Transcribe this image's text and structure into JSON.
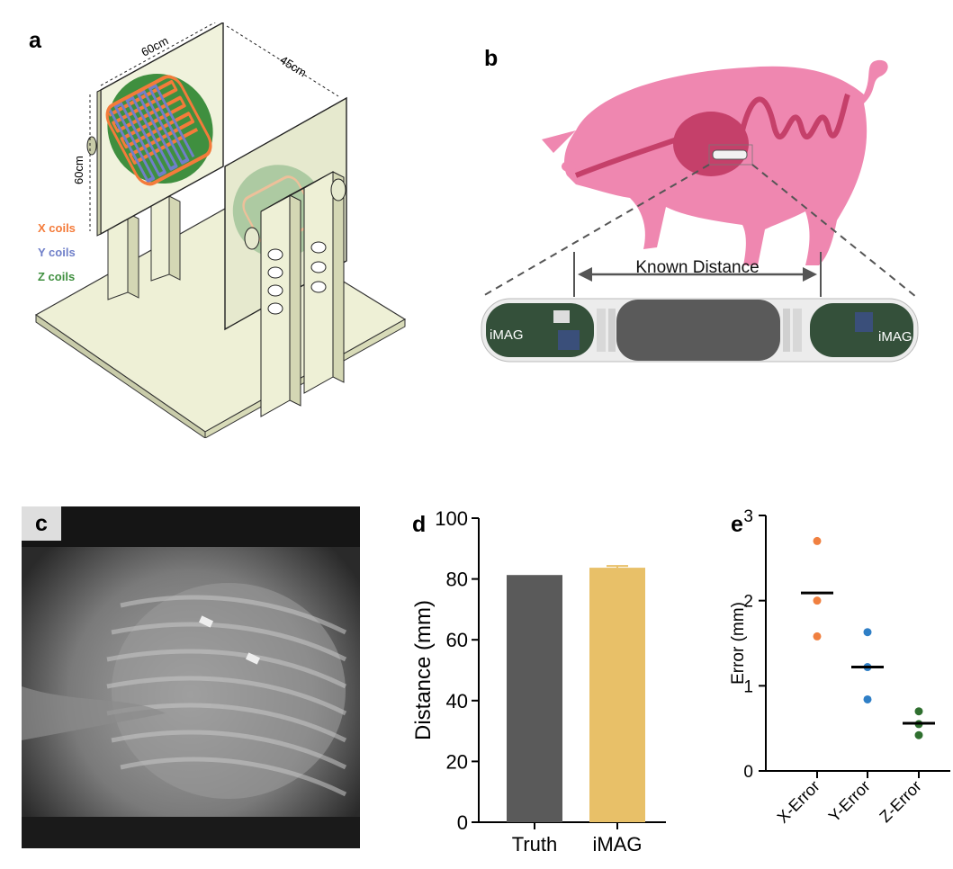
{
  "panels": {
    "a": {
      "label": "a",
      "dims": {
        "width": "60cm",
        "height": "60cm",
        "separation": "45cm"
      },
      "legend": [
        {
          "text": "X coils",
          "color": "#f47b3a"
        },
        {
          "text": "Y coils",
          "color": "#6f7fc9"
        },
        {
          "text": "Z coils",
          "color": "#3f8f3f"
        }
      ]
    },
    "b": {
      "label": "b",
      "annotation": "Known Distance",
      "device_left": "iMAG",
      "device_right": "iMAG",
      "colors": {
        "pig": "#ef87b0",
        "organs": "#c5406a",
        "capsule": "#5a5a5a"
      }
    },
    "c": {
      "label": "c"
    },
    "d": {
      "label": "d"
    },
    "e": {
      "label": "e"
    }
  },
  "chart_data": [
    {
      "panel": "d",
      "type": "bar",
      "categories": [
        "Truth",
        "iMAG"
      ],
      "values": [
        81.3,
        83.7
      ],
      "error": [
        0,
        0.6
      ],
      "colors": [
        "#5a5a5a",
        "#e8c068"
      ],
      "ylabel": "Distance (mm)",
      "ylim": [
        0,
        100
      ],
      "yticks": [
        0,
        20,
        40,
        60,
        80,
        100
      ],
      "grid": false
    },
    {
      "panel": "e",
      "type": "scatter",
      "categories": [
        "X-Error",
        "Y-Error",
        "Z-Error"
      ],
      "series": [
        {
          "category": "X-Error",
          "points": [
            2.7,
            2.0,
            1.58
          ],
          "mean": 2.09,
          "color": "#f08040"
        },
        {
          "category": "Y-Error",
          "points": [
            1.63,
            1.22,
            0.84
          ],
          "mean": 1.22,
          "color": "#2f7fc6"
        },
        {
          "category": "Z-Error",
          "points": [
            0.7,
            0.55,
            0.42
          ],
          "mean": 0.56,
          "color": "#2f6f2f"
        }
      ],
      "ylabel": "Error (mm)",
      "ylim": [
        0,
        3
      ],
      "yticks": [
        0,
        1,
        2,
        3
      ],
      "grid": false
    }
  ]
}
